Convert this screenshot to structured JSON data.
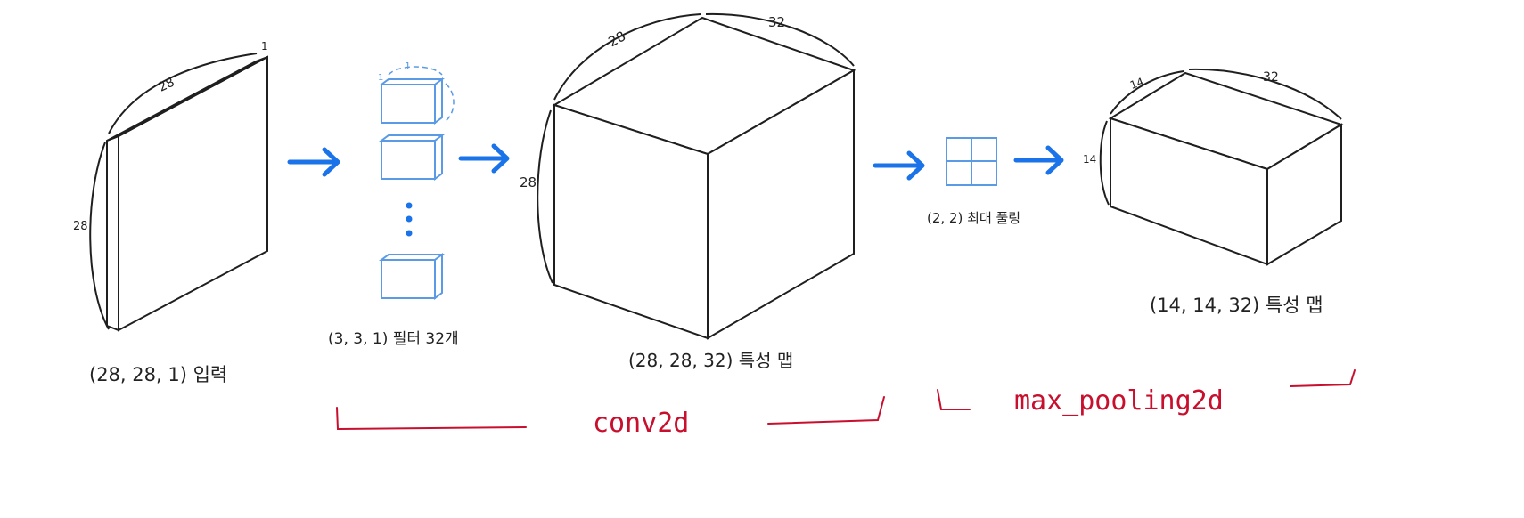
{
  "colors": {
    "ink": "#1f1f1f",
    "arrow": "#1a73e8",
    "filter": "#5b9be6",
    "annotation": "#c8102e"
  },
  "input": {
    "caption": "(28, 28, 1) 입력",
    "dim_width": "28",
    "dim_height": "28",
    "dim_depth": "1"
  },
  "filters": {
    "caption": "(3, 3, 1) 필터 32개",
    "count_shown": 3,
    "dim_top": "1",
    "dim_left": "1"
  },
  "conv_output": {
    "caption": "(28, 28, 32) 특성 맵",
    "dim_width": "28",
    "dim_depth": "32",
    "dim_height": "28"
  },
  "pooling": {
    "caption": "(2, 2) 최대 풀링"
  },
  "pool_output": {
    "caption": "(14, 14, 32) 특성 맵",
    "dim_width": "14",
    "dim_depth": "32",
    "dim_height": "14"
  },
  "annotations": {
    "conv_label": "conv2d",
    "pool_label": "max_pooling2d"
  }
}
